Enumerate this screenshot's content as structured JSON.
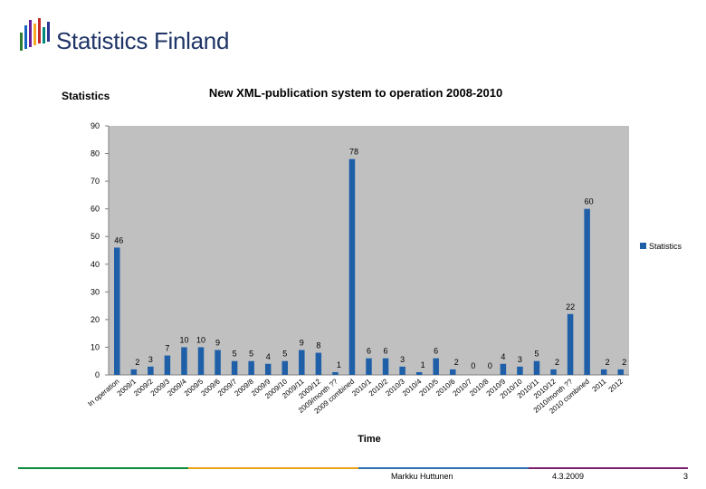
{
  "header": {
    "brand_name": "Statistics Finland",
    "slide_label": "Statistics"
  },
  "chart_data": {
    "type": "bar",
    "title": "New XML-publication system to operation 2008-2010",
    "xlabel": "Time",
    "ylabel": "",
    "ylim": [
      0,
      90
    ],
    "y_ticks": [
      0,
      10,
      20,
      30,
      40,
      50,
      60,
      70,
      80,
      90
    ],
    "grid": false,
    "legend_position": "right",
    "series": [
      {
        "name": "Statistics",
        "color": "#1f5fa8",
        "values": [
          46,
          2,
          3,
          7,
          10,
          10,
          9,
          5,
          5,
          4,
          5,
          9,
          8,
          1,
          78,
          6,
          6,
          3,
          1,
          6,
          2,
          0,
          0,
          4,
          3,
          5,
          2,
          22,
          60,
          2,
          2
        ]
      }
    ],
    "categories": [
      "In operation",
      "2009/1",
      "2009/2",
      "2009/3",
      "2009/4",
      "2009/5",
      "2009/6",
      "2009/7",
      "2009/8",
      "2009/9",
      "2009/10",
      "2009/11",
      "2009/12",
      "2009/month ??",
      "2009 combined",
      "2010/1",
      "2010/2",
      "2010/3",
      "2010/4",
      "2010/5",
      "2010/6",
      "2010/7",
      "2010/8",
      "2010/9",
      "2010/10",
      "2010/11",
      "2010/12",
      "2010/month ??",
      "2010 combined",
      "2011",
      "2012"
    ],
    "plot_bg": "#c0c0c0"
  },
  "footer": {
    "author": "Markku Huttunen",
    "date": "4.3.2009",
    "page_number": "3",
    "colors": [
      "#0b8a3c",
      "#e8a317",
      "#2b6cb0",
      "#7a1f6b"
    ]
  }
}
